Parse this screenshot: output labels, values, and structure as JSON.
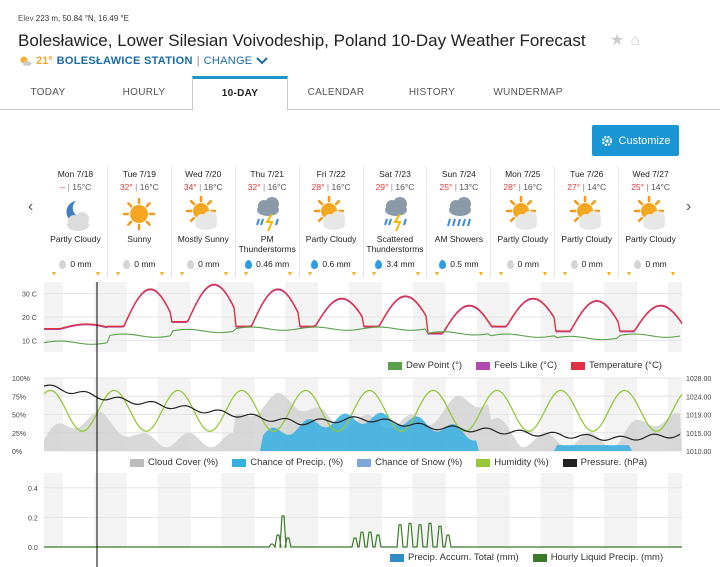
{
  "header": {
    "elev_label": "Elev",
    "elev_value": "223 m",
    "coords": "50.84 °N, 16.49 °E",
    "title": "Bolesławice, Lower Silesian Voivodeship, Poland 10-Day Weather Forecast",
    "current_temp": "21°",
    "station": "BOLESŁAWICE STATION",
    "change": "CHANGE"
  },
  "tabs": [
    "TODAY",
    "HOURLY",
    "10-DAY",
    "CALENDAR",
    "HISTORY",
    "WUNDERMAP"
  ],
  "customize_label": "Customize",
  "days": [
    {
      "date": "Mon 7/18",
      "hi": "--",
      "lo": "15°C",
      "icon": "moon-cloud-icon",
      "cond": "Partly Cloudy",
      "precip": "0 mm",
      "drop": "gray"
    },
    {
      "date": "Tue 7/19",
      "hi": "32°",
      "lo": "16°C",
      "icon": "sun-icon",
      "cond": "Sunny",
      "precip": "0 mm",
      "drop": "gray"
    },
    {
      "date": "Wed 7/20",
      "hi": "34°",
      "lo": "18°C",
      "icon": "sun-cloud-icon",
      "cond": "Mostly Sunny",
      "precip": "0 mm",
      "drop": "gray"
    },
    {
      "date": "Thu 7/21",
      "hi": "32°",
      "lo": "16°C",
      "icon": "thunderstorm-icon",
      "cond": "PM Thunderstorms",
      "precip": "0.46 mm",
      "drop": "blue"
    },
    {
      "date": "Fri 7/22",
      "hi": "28°",
      "lo": "16°C",
      "icon": "sun-cloud-icon",
      "cond": "Partly Cloudy",
      "precip": "0.6 mm",
      "drop": "blue"
    },
    {
      "date": "Sat 7/23",
      "hi": "29°",
      "lo": "16°C",
      "icon": "thunderstorm-icon",
      "cond": "Scattered Thunderstorms",
      "precip": "3.4 mm",
      "drop": "blue"
    },
    {
      "date": "Sun 7/24",
      "hi": "25°",
      "lo": "13°C",
      "icon": "rain-icon",
      "cond": "AM Showers",
      "precip": "0.5 mm",
      "drop": "blue"
    },
    {
      "date": "Mon 7/25",
      "hi": "28°",
      "lo": "16°C",
      "icon": "sun-cloud-icon",
      "cond": "Partly Cloudy",
      "precip": "0 mm",
      "drop": "gray"
    },
    {
      "date": "Tue 7/26",
      "hi": "27°",
      "lo": "14°C",
      "icon": "sun-cloud-icon",
      "cond": "Partly Cloudy",
      "precip": "0 mm",
      "drop": "gray"
    },
    {
      "date": "Wed 7/27",
      "hi": "25°",
      "lo": "14°C",
      "icon": "sun-cloud-icon",
      "cond": "Partly Cloudy",
      "precip": "0 mm",
      "drop": "gray"
    }
  ],
  "chart_data": [
    {
      "type": "line",
      "y_ticks": [
        "30 C",
        "20 C",
        "10 C"
      ],
      "ylim": [
        5,
        35
      ],
      "series": [
        {
          "name": "Dew Point (°)",
          "color": "#5aa04a"
        },
        {
          "name": "Feels Like (°C)",
          "color": "#b04ab0"
        },
        {
          "name": "Temperature (°C)",
          "color": "#e03040"
        }
      ],
      "daily_hi": [
        17,
        32,
        34,
        32,
        28,
        29,
        25,
        28,
        27,
        25
      ],
      "daily_lo": [
        15,
        16,
        18,
        16,
        16,
        16,
        13,
        16,
        14,
        14
      ],
      "dew_point": [
        9,
        12,
        14,
        15,
        15,
        15,
        13,
        12,
        11,
        12
      ]
    },
    {
      "type": "area",
      "y_ticks_left": [
        "100%",
        "75%",
        "50%",
        "25%",
        "0%"
      ],
      "y_ticks_right": [
        "1028.00",
        "1024.00",
        "1019.00",
        "1015.00",
        "1010.00"
      ],
      "series": [
        {
          "name": "Cloud Cover (%)",
          "color": "#bbbbbb"
        },
        {
          "name": "Chance of Precip. (%)",
          "color": "#35aee0"
        },
        {
          "name": "Chance of Snow (%)",
          "color": "#7aa6d8"
        },
        {
          "name": "Humidity (%)",
          "color": "#96c83c"
        },
        {
          "name": "Pressure. (hPa)",
          "color": "#222222"
        }
      ],
      "pressure": [
        1026,
        1023,
        1021,
        1019,
        1017,
        1018,
        1016,
        1015,
        1014,
        1013,
        1014
      ]
    },
    {
      "type": "area",
      "y_ticks": [
        "0.4",
        "0.2",
        "0.0"
      ],
      "ylim": [
        0,
        0.5
      ],
      "series": [
        {
          "name": "Precip. Accum. Total (mm)",
          "color": "#2f8fc4"
        },
        {
          "name": "Hourly Liquid Precip. (mm)",
          "color": "#3a7a2a"
        }
      ]
    }
  ]
}
